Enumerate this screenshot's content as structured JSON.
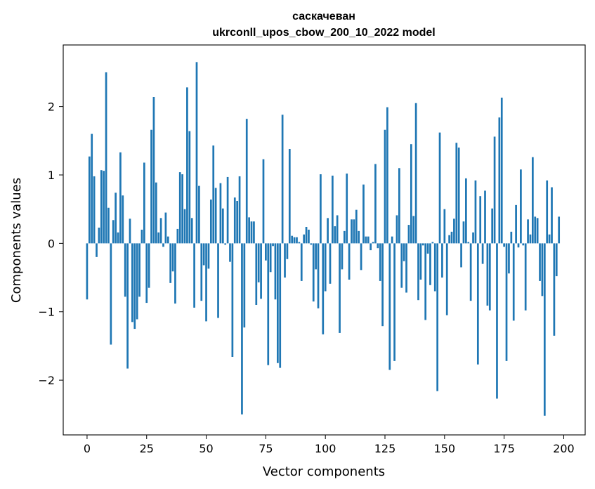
{
  "chart_data": {
    "type": "bar",
    "title_line1": "саскачеван",
    "title_line2": "ukrconll_upos_cbow_200_10_2022 model",
    "xlabel": "Vector components",
    "ylabel": "Components values",
    "xlim": [
      -10,
      209
    ],
    "ylim": [
      -2.8,
      2.9
    ],
    "xticks": [
      0,
      25,
      50,
      75,
      100,
      125,
      150,
      175,
      200
    ],
    "yticks": [
      -2,
      -1,
      0,
      1,
      2
    ],
    "ytick_labels": [
      "−2",
      "−1",
      "0",
      "1",
      "2"
    ],
    "bar_color": "#1f77b4",
    "grid": false,
    "values": [
      -0.82,
      1.27,
      1.6,
      0.98,
      -0.2,
      0.23,
      1.07,
      1.06,
      2.5,
      0.52,
      -1.48,
      0.34,
      0.74,
      0.16,
      1.33,
      0.7,
      -0.78,
      -1.83,
      0.36,
      -1.15,
      -1.25,
      -1.11,
      -0.78,
      0.2,
      1.18,
      -0.87,
      -0.65,
      1.66,
      2.14,
      0.89,
      0.16,
      0.37,
      -0.05,
      0.45,
      0.1,
      -0.58,
      -0.41,
      -0.88,
      0.21,
      1.04,
      1.01,
      0.5,
      2.28,
      1.64,
      0.37,
      -0.94,
      2.65,
      0.84,
      -0.84,
      -0.32,
      -1.14,
      -0.37,
      0.64,
      1.43,
      0.81,
      -1.09,
      0.88,
      0.51,
      -0.02,
      0.97,
      -0.27,
      -1.66,
      0.67,
      0.62,
      0.98,
      -2.5,
      -1.23,
      1.82,
      0.38,
      0.32,
      0.32,
      -0.9,
      -0.57,
      -0.81,
      1.23,
      -0.25,
      -1.78,
      -0.42,
      -0.04,
      -0.82,
      -1.75,
      -1.82,
      1.88,
      -0.5,
      -0.23,
      1.38,
      0.11,
      0.09,
      0.09,
      0.02,
      -0.55,
      0.13,
      0.24,
      0.2,
      -0.02,
      -0.85,
      -0.38,
      -0.95,
      1.01,
      -1.33,
      -0.7,
      0.37,
      -0.59,
      0.99,
      0.25,
      0.41,
      -1.31,
      -0.38,
      0.18,
      1.02,
      -0.53,
      0.35,
      0.35,
      0.49,
      0.18,
      -0.39,
      0.86,
      0.1,
      0.1,
      -0.1,
      0.02,
      1.16,
      -0.07,
      -0.55,
      -1.21,
      1.66,
      1.99,
      -1.85,
      0.1,
      -1.72,
      0.41,
      1.1,
      -0.65,
      -0.26,
      -0.72,
      0.27,
      1.45,
      0.4,
      2.05,
      -0.83,
      -0.53,
      -0.03,
      -1.12,
      -0.15,
      -0.61,
      0.02,
      -0.7,
      -2.16,
      1.62,
      -0.5,
      0.5,
      -1.05,
      0.12,
      0.17,
      0.36,
      1.47,
      1.4,
      -0.35,
      0.32,
      0.95,
      0.02,
      -0.84,
      0.16,
      0.92,
      -1.77,
      0.69,
      -0.3,
      0.77,
      -0.91,
      -0.98,
      0.51,
      1.56,
      -2.27,
      1.84,
      2.13,
      -0.05,
      -1.72,
      -0.44,
      0.17,
      -1.13,
      0.56,
      -0.06,
      1.08,
      -0.03,
      -0.98,
      0.35,
      0.13,
      1.26,
      0.39,
      0.37,
      -0.55,
      -0.77,
      -2.52,
      0.92,
      0.13,
      0.82,
      -1.35,
      -0.48,
      0.39
    ]
  }
}
